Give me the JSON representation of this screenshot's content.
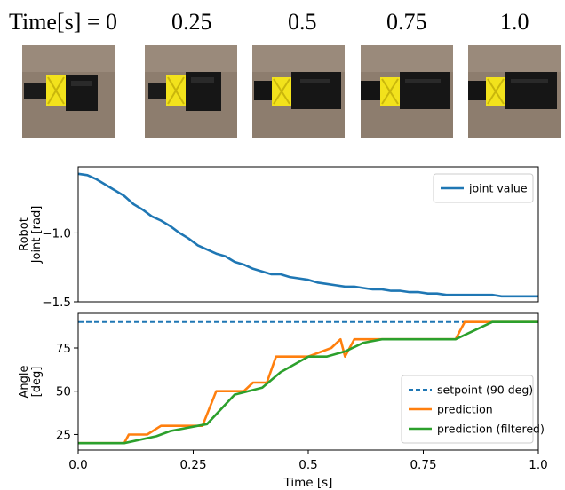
{
  "image_strip": {
    "labels": [
      "Time[s] = 0",
      "0.25",
      "0.5",
      "0.75",
      "1.0"
    ],
    "colors": {
      "background": "#8d7d6e",
      "body": "#161616",
      "clip": "#f2e21c"
    }
  },
  "chart_data": [
    {
      "type": "line",
      "title": "",
      "xlabel": "",
      "ylabel": "Robot\nJoint [rad]",
      "ylabel_lines": [
        "Robot",
        "Joint [rad]"
      ],
      "xlim": [
        0,
        1.0
      ],
      "ylim": [
        -1.5,
        -0.52
      ],
      "yticks": [
        -1.0,
        -1.5
      ],
      "ytick_labels": [
        "−1.0",
        "−1.5"
      ],
      "legend": {
        "position": "top-right",
        "entries": [
          "joint value"
        ]
      },
      "series": [
        {
          "name": "joint value",
          "color": "#1f77b4",
          "style": "solid",
          "x": [
            0.0,
            0.02,
            0.04,
            0.06,
            0.08,
            0.1,
            0.12,
            0.14,
            0.16,
            0.18,
            0.2,
            0.22,
            0.24,
            0.26,
            0.28,
            0.3,
            0.32,
            0.34,
            0.36,
            0.38,
            0.4,
            0.42,
            0.44,
            0.46,
            0.48,
            0.5,
            0.52,
            0.54,
            0.56,
            0.58,
            0.6,
            0.62,
            0.64,
            0.66,
            0.68,
            0.7,
            0.72,
            0.74,
            0.76,
            0.78,
            0.8,
            0.82,
            0.84,
            0.86,
            0.88,
            0.9,
            0.92,
            0.94,
            0.96,
            0.98,
            1.0
          ],
          "values": [
            -0.57,
            -0.58,
            -0.61,
            -0.65,
            -0.69,
            -0.73,
            -0.79,
            -0.83,
            -0.88,
            -0.91,
            -0.95,
            -1.0,
            -1.04,
            -1.09,
            -1.12,
            -1.15,
            -1.17,
            -1.21,
            -1.23,
            -1.26,
            -1.28,
            -1.3,
            -1.3,
            -1.32,
            -1.33,
            -1.34,
            -1.36,
            -1.37,
            -1.38,
            -1.39,
            -1.39,
            -1.4,
            -1.41,
            -1.41,
            -1.42,
            -1.42,
            -1.43,
            -1.43,
            -1.44,
            -1.44,
            -1.45,
            -1.45,
            -1.45,
            -1.45,
            -1.45,
            -1.45,
            -1.46,
            -1.46,
            -1.46,
            -1.46,
            -1.46
          ]
        }
      ]
    },
    {
      "type": "line",
      "title": "",
      "xlabel": "Time [s]",
      "ylabel": "Angle\n[deg]",
      "ylabel_lines": [
        "Angle",
        "[deg]"
      ],
      "xlim": [
        0,
        1.0
      ],
      "ylim": [
        16,
        95
      ],
      "xticks": [
        0.0,
        0.25,
        0.5,
        0.75,
        1.0
      ],
      "xtick_labels": [
        "0.0",
        "0.25",
        "0.5",
        "0.75",
        "1.0"
      ],
      "yticks": [
        25,
        50,
        75
      ],
      "ytick_labels": [
        "25",
        "50",
        "75"
      ],
      "legend": {
        "position": "bottom-right",
        "entries": [
          "setpoint (90 deg)",
          "prediction",
          "prediction (filtered)"
        ]
      },
      "series": [
        {
          "name": "setpoint (90 deg)",
          "color": "#1f77b4",
          "style": "dashed",
          "x": [
            0.0,
            1.0
          ],
          "values": [
            90,
            90
          ]
        },
        {
          "name": "prediction",
          "color": "#ff7f0e",
          "style": "solid",
          "x": [
            0.0,
            0.1,
            0.11,
            0.15,
            0.18,
            0.27,
            0.3,
            0.36,
            0.38,
            0.41,
            0.43,
            0.5,
            0.55,
            0.57,
            0.58,
            0.6,
            0.66,
            0.82,
            0.84,
            1.0
          ],
          "values": [
            20,
            20,
            25,
            25,
            30,
            30,
            50,
            50,
            55,
            55,
            70,
            70,
            75,
            80,
            70,
            80,
            80,
            80,
            90,
            90
          ]
        },
        {
          "name": "prediction (filtered)",
          "color": "#2ca02c",
          "style": "solid",
          "x": [
            0.0,
            0.1,
            0.17,
            0.2,
            0.26,
            0.28,
            0.34,
            0.4,
            0.44,
            0.5,
            0.54,
            0.58,
            0.62,
            0.66,
            0.75,
            0.82,
            0.9,
            1.0
          ],
          "values": [
            20,
            20,
            24,
            27,
            30,
            31,
            48,
            52,
            61,
            70,
            70,
            73,
            78,
            80,
            80,
            80,
            90,
            90
          ]
        }
      ]
    }
  ]
}
